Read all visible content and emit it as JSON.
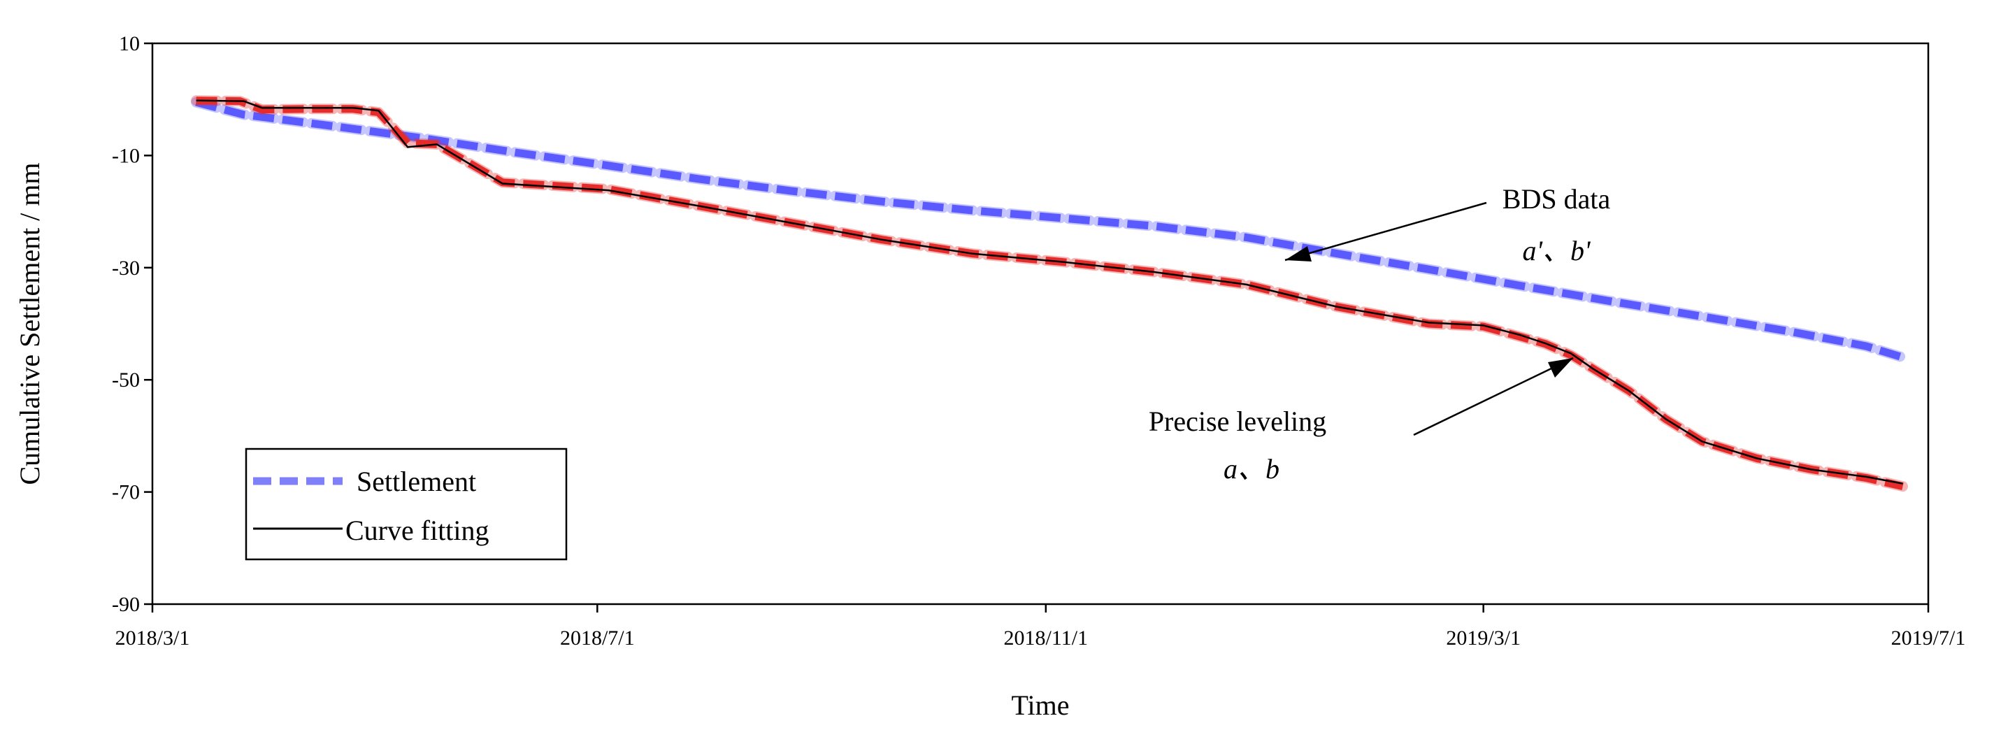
{
  "chart_data": {
    "type": "line",
    "xlabel": "Time",
    "ylabel": "Cumulative Settlement / mm",
    "x_ticks": [
      "2018/3/1",
      "2018/7/1",
      "2018/11/1",
      "2019/3/1",
      "2019/7/1"
    ],
    "x_tick_days": [
      0,
      122,
      245,
      365,
      487
    ],
    "xlim_days": [
      0,
      487
    ],
    "y_ticks": [
      10,
      -10,
      -30,
      -50,
      -70,
      -90
    ],
    "ylim": [
      -90,
      10
    ],
    "grid": false,
    "legend": {
      "placement": "bottom-left",
      "entries": [
        {
          "label": "Settlement",
          "style": "dashed-blue"
        },
        {
          "label": "Curve fitting",
          "style": "solid-black"
        }
      ]
    },
    "annotations": [
      {
        "id": "bds",
        "lines": [
          "BDS data",
          "a'、b'"
        ],
        "points_to_day": 305,
        "points_to_value": -28.7
      },
      {
        "id": "leveling",
        "lines": [
          "Precise leveling",
          "a、b"
        ],
        "points_to_day": 385,
        "points_to_value": -45.6
      }
    ],
    "series": [
      {
        "name": "BDS data a'、b'",
        "color": "#5a5aff",
        "x_days": [
          12,
          25,
          50,
          75,
          100,
          125,
          150,
          175,
          200,
          225,
          250,
          275,
          300,
          325,
          350,
          375,
          400,
          425,
          450,
          470,
          480
        ],
        "values": [
          -0.5,
          -2.7,
          -4.8,
          -7.0,
          -9.5,
          -11.8,
          -14.2,
          -16.3,
          -18.2,
          -19.8,
          -21.2,
          -22.6,
          -24.6,
          -27.5,
          -30.3,
          -33.2,
          -36.0,
          -38.7,
          -41.5,
          -44.0,
          -46.0
        ]
      },
      {
        "name": "Precise leveling a、b",
        "color": "#e62b2b",
        "x_days": [
          12,
          24,
          30,
          42,
          55,
          62,
          70,
          78,
          96,
          125,
          150,
          175,
          200,
          225,
          250,
          275,
          300,
          325,
          350,
          365,
          375,
          382,
          389,
          395,
          405,
          415,
          425,
          440,
          455,
          470,
          480
        ],
        "values": [
          -0.2,
          -0.3,
          -1.8,
          -1.7,
          -1.7,
          -2.3,
          -7.8,
          -8.0,
          -14.8,
          -16.0,
          -19.0,
          -22.0,
          -25.0,
          -27.5,
          -29.0,
          -30.8,
          -33.0,
          -37.0,
          -40.0,
          -40.5,
          -42.3,
          -43.6,
          -45.6,
          -48.0,
          -52.0,
          -57.0,
          -61.0,
          -64.0,
          -66.0,
          -67.5,
          -69.0
        ]
      },
      {
        "name": "Curve fitting",
        "color": "#000000",
        "x_days": [
          12,
          25,
          30,
          42,
          55,
          62,
          70,
          78,
          96,
          125,
          150,
          175,
          200,
          225,
          250,
          275,
          300,
          325,
          350,
          365,
          375,
          382,
          389,
          395,
          405,
          415,
          425,
          440,
          455,
          470,
          480
        ],
        "values": [
          -0.2,
          -0.3,
          -1.5,
          -1.5,
          -1.5,
          -2.0,
          -8.5,
          -8.0,
          -15.0,
          -16.2,
          -19.0,
          -22.0,
          -25.0,
          -27.5,
          -29.0,
          -30.8,
          -33.0,
          -37.0,
          -39.8,
          -40.3,
          -42.0,
          -43.5,
          -45.3,
          -48.0,
          -52.0,
          -57.0,
          -61.0,
          -64.0,
          -66.0,
          -67.3,
          -68.5
        ]
      }
    ]
  }
}
